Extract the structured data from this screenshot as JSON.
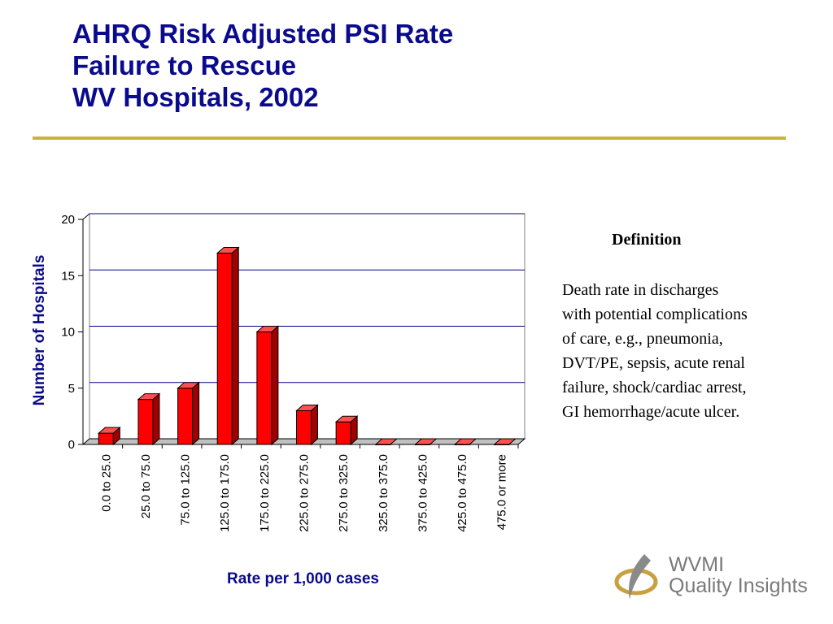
{
  "title": {
    "line1": "AHRQ Risk Adjusted PSI Rate",
    "line2": "Failure to Rescue",
    "line3": "WV Hospitals, 2002"
  },
  "definition": {
    "heading": "Definition",
    "text": "Death rate in discharges\nwith potential complications\nof care, e.g., pneumonia,\nDVT/PE, sepsis, acute renal\nfailure, shock/cardiac arrest,\n GI hemorrhage/acute ulcer."
  },
  "logo": {
    "line1": "WVMI",
    "line2": "Quality Insights"
  },
  "colors": {
    "title": "#0a0a8c",
    "bar_front": "#ff0000",
    "bar_side": "#a00000",
    "bar_top": "#ff5050",
    "rule": "#c8b43c",
    "gridline": "#000080"
  },
  "chart_data": {
    "type": "bar",
    "categories": [
      "0.0 to 25.0",
      "25.0 to 75.0",
      "75.0 to 125.0",
      "125.0 to 175.0",
      "175.0 to 225.0",
      "225.0 to 275.0",
      "275.0 to 325.0",
      "325.0 to 375.0",
      "375.0 to 425.0",
      "425.0 to 475.0",
      "475.0 or more"
    ],
    "values": [
      1,
      4,
      5,
      17,
      10,
      3,
      2,
      0,
      0,
      0,
      0
    ],
    "xlabel": "Rate per 1,000 cases",
    "ylabel": "Number of Hospitals",
    "ylim": [
      0,
      20
    ],
    "yticks": [
      0,
      5,
      10,
      15,
      20
    ],
    "grid": true,
    "style": "3d-bar"
  }
}
